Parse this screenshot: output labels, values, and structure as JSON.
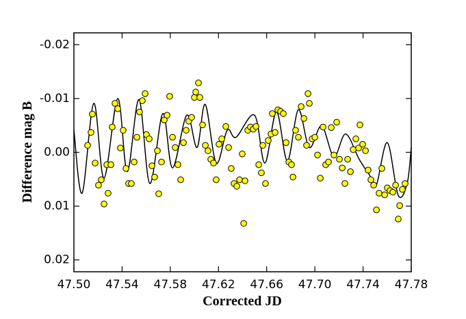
{
  "chart_data": {
    "type": "scatter",
    "xlabel": "Corrected JD",
    "ylabel": "Difference mag B",
    "xlim": [
      47.5,
      47.78
    ],
    "xticks": [
      {
        "value": 47.5,
        "label": "47.50"
      },
      {
        "value": 47.54,
        "label": "47.54"
      },
      {
        "value": 47.58,
        "label": "47.58"
      },
      {
        "value": 47.62,
        "label": "47.62"
      },
      {
        "value": 47.66,
        "label": "47.66"
      },
      {
        "value": 47.7,
        "label": "47.70"
      },
      {
        "value": 47.74,
        "label": "47.74"
      },
      {
        "value": 47.78,
        "label": "47.78"
      }
    ],
    "ylim": [
      0.0222,
      -0.0222
    ],
    "yticks": [
      -0.02,
      -0.01,
      {
        "value": 0,
        "label": "0.00"
      },
      0.01,
      0.02
    ],
    "points": {
      "color": "#ffff00",
      "x": [
        47.5114,
        47.5142,
        47.5153,
        47.5176,
        47.5204,
        47.5227,
        47.525,
        47.5273,
        47.5284,
        47.5307,
        47.5318,
        47.5341,
        47.5364,
        47.5386,
        47.5409,
        47.5432,
        47.5454,
        47.5477,
        47.55,
        47.5523,
        47.5545,
        47.5568,
        47.5591,
        47.5602,
        47.5625,
        47.5648,
        47.567,
        47.5693,
        47.5704,
        47.5727,
        47.575,
        47.5773,
        47.5795,
        47.5818,
        47.5841,
        47.5863,
        47.5886,
        47.5909,
        47.5932,
        47.5954,
        47.5977,
        47.6,
        47.6011,
        47.6034,
        47.6045,
        47.6068,
        47.6091,
        47.6113,
        47.6136,
        47.6159,
        47.6181,
        47.6204,
        47.6227,
        47.6261,
        47.6284,
        47.6306,
        47.6329,
        47.6352,
        47.6375,
        47.6397,
        47.6409,
        47.642,
        47.6443,
        47.6465,
        47.6488,
        47.6511,
        47.6534,
        47.6556,
        47.6568,
        47.659,
        47.6613,
        47.6636,
        47.6647,
        47.667,
        47.6693,
        47.6715,
        47.6738,
        47.6761,
        47.6784,
        47.6806,
        47.6818,
        47.684,
        47.6863,
        47.6886,
        47.6909,
        47.6931,
        47.6943,
        47.6954,
        47.6977,
        47.7,
        47.7022,
        47.7045,
        47.7068,
        47.709,
        47.7113,
        47.7136,
        47.7158,
        47.7181,
        47.7204,
        47.7227,
        47.7249,
        47.7272,
        47.7295,
        47.7318,
        47.734,
        47.7363,
        47.7374,
        47.7397,
        47.742,
        47.7442,
        47.7465,
        47.7488,
        47.7511,
        47.7533,
        47.7556,
        47.7579,
        47.7601,
        47.7624,
        47.7647,
        47.767,
        47.7692,
        47.7704,
        47.7726,
        47.7749
      ],
      "values": [
        -0.0013,
        -0.0037,
        -0.0071,
        0.002,
        0.0061,
        0.0051,
        0.0096,
        0.0023,
        0.0076,
        0.0023,
        -0.0047,
        -0.0091,
        -0.0081,
        -0.0008,
        -0.0041,
        0.003,
        0.0058,
        0.0058,
        0.0018,
        -0.0028,
        -0.0075,
        -0.0096,
        -0.0109,
        -0.0033,
        -0.0025,
        0.0025,
        0.0046,
        -0.0003,
        0.0077,
        0.0018,
        -0.006,
        -0.0069,
        -0.0104,
        -0.0028,
        -0.0009,
        0.0023,
        0.0051,
        -0.0018,
        -0.0041,
        -0.0058,
        -0.0065,
        -0.0102,
        -0.0112,
        -0.0129,
        -0.0102,
        -0.0051,
        -0.0013,
        -0.0003,
        0.0013,
        0.002,
        0.0051,
        -0.0015,
        -0.0025,
        -0.0048,
        -0.0009,
        0.003,
        0.0058,
        0.0063,
        0.0051,
        0.0003,
        0.0132,
        0.0053,
        -0.0041,
        -0.0047,
        -0.0043,
        -0.0048,
        0.0023,
        0.0038,
        -0.0013,
        0.0058,
        -0.0022,
        -0.0034,
        -0.0072,
        -0.0037,
        -0.0079,
        -0.0076,
        -0.0072,
        -0.0018,
        0.0018,
        0.0023,
        0.0046,
        -0.0041,
        -0.0028,
        -0.0085,
        -0.0063,
        -0.0013,
        -0.0109,
        -0.0091,
        -0.0025,
        -0.0028,
        0.0005,
        0.0048,
        -0.0047,
        0.0023,
        0.0018,
        -0.0046,
        0.0005,
        -0.0056,
        0.0013,
        0.0029,
        0.0058,
        0.0013,
        0.0036,
        -0.0005,
        -0.0025,
        -0.0008,
        -0.0051,
        -0.0015,
        -0.0003,
        0.0033,
        0.0051,
        0.0061,
        0.0107,
        0.0076,
        0.003,
        0.0079,
        0.0066,
        0.0071,
        0.0074,
        0.0061,
        0.0124,
        0.0099,
        0.0069,
        0.0058
      ]
    },
    "curve": {
      "color": "#000000",
      "x": [
        47.5,
        47.5068,
        47.5165,
        47.525,
        47.5364,
        47.5443,
        47.554,
        47.563,
        47.5738,
        47.5818,
        47.5937,
        47.6022,
        47.609,
        47.6181,
        47.6272,
        47.6346,
        47.6499,
        47.6585,
        47.6681,
        47.6772,
        47.6863,
        47.6954,
        47.7056,
        47.7158,
        47.7255,
        47.7368,
        47.7453,
        47.751,
        47.7601,
        47.7692,
        47.7766,
        47.78
      ],
      "values": [
        -0.0041,
        0.0076,
        -0.0091,
        0.0048,
        -0.01,
        0.0036,
        -0.0098,
        0.0058,
        -0.0072,
        0.0029,
        -0.0069,
        -0.0009,
        -0.0089,
        0.002,
        -0.0041,
        -0.0028,
        -0.0069,
        0.002,
        -0.0075,
        0.0016,
        -0.0079,
        -0.0009,
        -0.0049,
        0.0008,
        -0.0034,
        0.0013,
        0.0042,
        0.0061,
        -0.0018,
        0.008,
        0.0058,
        -0.0009
      ]
    }
  }
}
